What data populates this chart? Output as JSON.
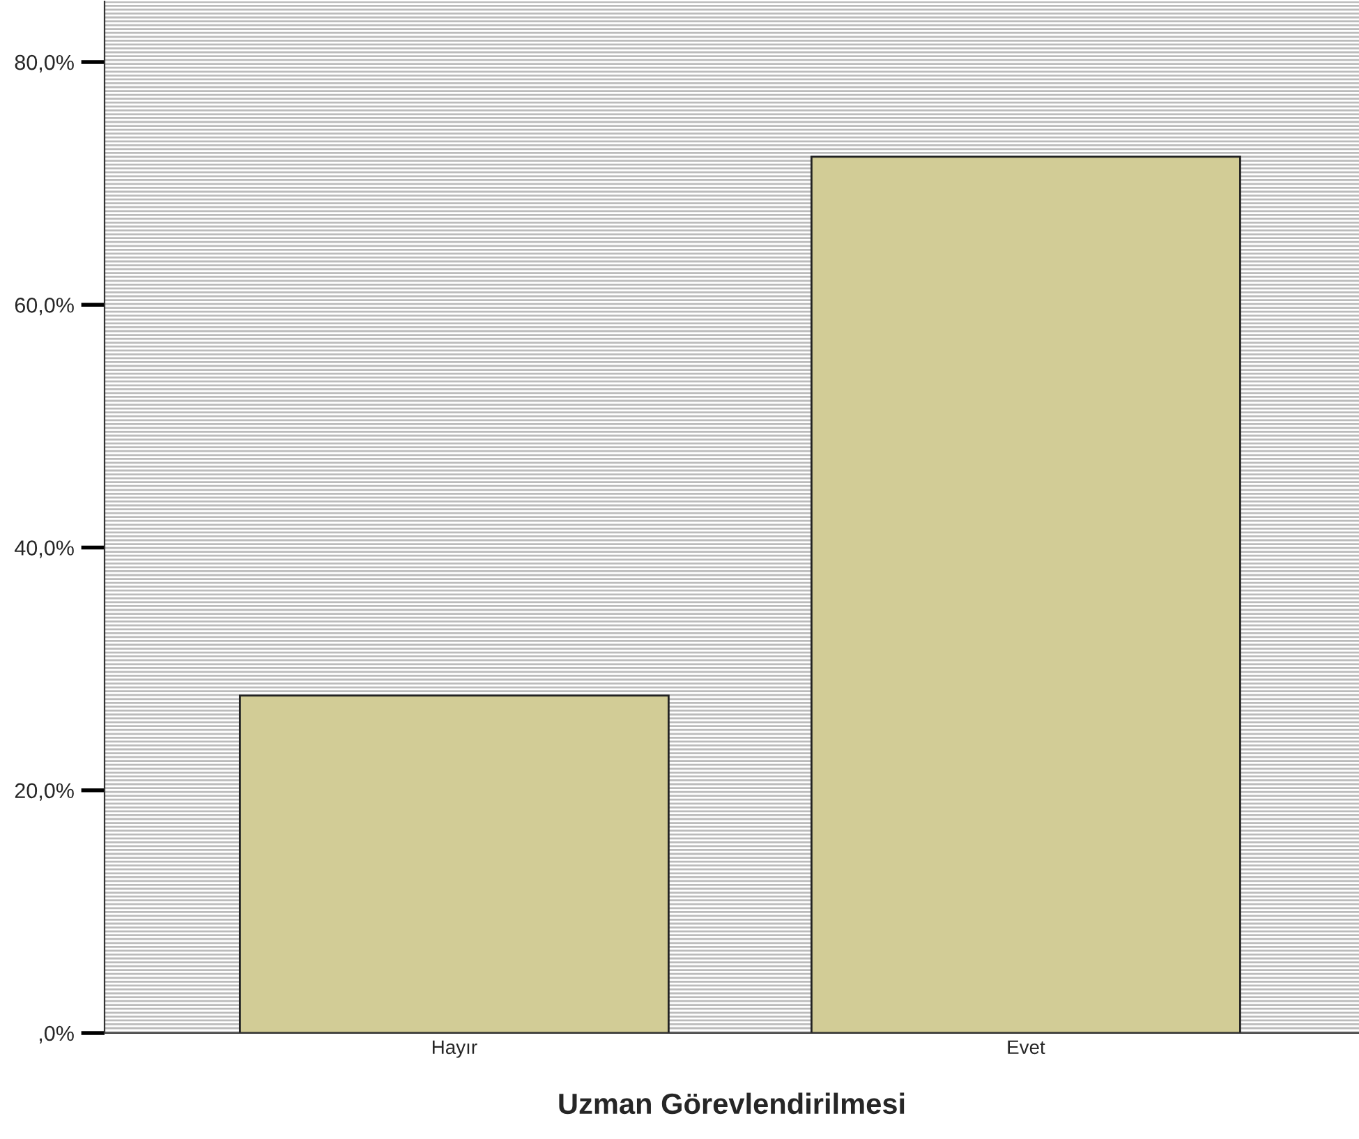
{
  "chart_data": {
    "type": "bar",
    "xlabel": "Uzman Görevlendirilmesi",
    "categories": [
      "Hayır",
      "Evet"
    ],
    "values": [
      27.8,
      72.2
    ],
    "color": "#d2cc96",
    "ylim": [
      0,
      85
    ],
    "yticks": [
      {
        "value": 0,
        "label": ",0%"
      },
      {
        "value": 20,
        "label": "20,0%"
      },
      {
        "value": 40,
        "label": "40,0%"
      },
      {
        "value": 60,
        "label": "60,0%"
      },
      {
        "value": 80,
        "label": "80,0%"
      }
    ],
    "grid": false,
    "legend": false
  }
}
